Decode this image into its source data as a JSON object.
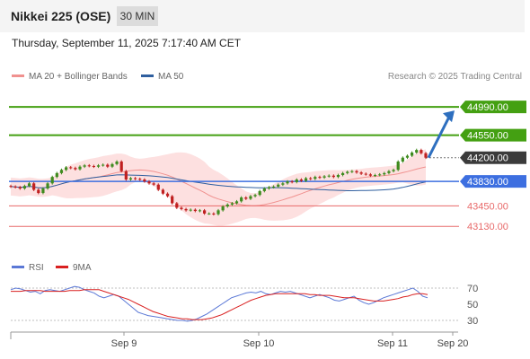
{
  "header": {
    "instrument": "Nikkei 225 (OSE)",
    "timeframe_label": "30 MIN"
  },
  "datetime": "Thursday, September 11, 2025 7:17:40 AM CET",
  "legend": {
    "bollinger_label": "MA 20 + Bollinger Bands",
    "ma50_label": "MA 50",
    "rsi_label": "RSI",
    "rsi_ma_label": "9MA"
  },
  "credit": "Research © 2025 Trading Central",
  "colors": {
    "bollinger": "#f0918f",
    "bollinger_fill": "#fde0e0",
    "ma50": "#2f5f9f",
    "resistance": "#44a012",
    "support": "#e86a6a",
    "current": "#3b3b3b",
    "pivot": "#3d6fe0",
    "candle_up": "#3f8b1f",
    "candle_down": "#c02020",
    "rsi": "#5b78d6",
    "rsi_ma": "#d92020",
    "arrow": "#2e6fbf"
  },
  "chart_data": [
    {
      "type": "candlestick",
      "instrument": "Nikkei 225 (OSE)",
      "interval": "30 MIN",
      "x_labels": [
        "Sep 9",
        "Sep 10",
        "Sep 11",
        "Sep 20"
      ],
      "ylim": [
        42700,
        45300
      ],
      "close_series": [
        43750,
        43740,
        43720,
        43760,
        43800,
        43700,
        43650,
        43720,
        43800,
        43900,
        43960,
        44010,
        44050,
        44040,
        44020,
        44060,
        44080,
        44070,
        44060,
        44080,
        44090,
        44060,
        44100,
        44140,
        43990,
        43860,
        43880,
        43870,
        43860,
        43830,
        43800,
        43780,
        43700,
        43640,
        43600,
        43490,
        43420,
        43400,
        43380,
        43390,
        43370,
        43380,
        43330,
        43330,
        43320,
        43380,
        43440,
        43470,
        43490,
        43520,
        43580,
        43560,
        43600,
        43620,
        43680,
        43720,
        43740,
        43750,
        43780,
        43800,
        43830,
        43820,
        43860,
        43840,
        43880,
        43870,
        43900,
        43890,
        43910,
        43920,
        43900,
        43930,
        43960,
        43980,
        43990,
        43970,
        43950,
        43940,
        43920,
        43930,
        43940,
        43960,
        43990,
        44010,
        44140,
        44200,
        44230,
        44280,
        44320,
        44270,
        44200
      ],
      "resistance_levels": [
        44990.0,
        44550.0
      ],
      "current_price": 44200.0,
      "pivot": 43830.0,
      "support_levels": [
        43450.0,
        43130.0
      ],
      "target_arrow": {
        "from": 44200.0,
        "to": 44990.0
      }
    },
    {
      "type": "line",
      "title": "RSI",
      "series_names": [
        "RSI",
        "9MA"
      ],
      "y_ticks": [
        70,
        50,
        30
      ],
      "rsi": [
        68,
        70,
        69,
        67,
        65,
        66,
        63,
        67,
        68,
        67,
        66,
        68,
        70,
        72,
        71,
        68,
        66,
        64,
        60,
        58,
        60,
        62,
        60,
        55,
        50,
        45,
        40,
        38,
        36,
        35,
        34,
        33,
        32,
        31,
        30,
        30,
        29,
        30,
        32,
        35,
        38,
        42,
        46,
        50,
        54,
        58,
        60,
        62,
        64,
        65,
        64,
        66,
        63,
        62,
        64,
        66,
        65,
        66,
        64,
        62,
        60,
        58,
        60,
        62,
        60,
        58,
        55,
        54,
        56,
        58,
        60,
        55,
        52,
        50,
        52,
        55,
        58,
        60,
        62,
        64,
        66,
        68,
        70,
        66,
        60,
        58
      ],
      "rsi_ma": [
        66,
        66,
        66,
        67,
        67,
        67,
        67,
        66,
        66,
        66,
        66,
        66,
        67,
        67,
        67,
        68,
        68,
        68,
        68,
        66,
        64,
        62,
        60,
        58,
        56,
        53,
        50,
        47,
        44,
        41,
        39,
        37,
        35,
        34,
        33,
        32,
        32,
        31,
        31,
        31,
        32,
        33,
        35,
        37,
        40,
        43,
        46,
        49,
        52,
        55,
        57,
        59,
        61,
        62,
        63,
        63,
        63,
        63,
        63,
        63,
        63,
        62,
        62,
        61,
        61,
        61,
        60,
        59,
        58,
        58,
        58,
        57,
        56,
        55,
        54,
        54,
        54,
        55,
        56,
        57,
        59,
        60,
        62,
        63,
        63,
        62
      ]
    }
  ]
}
